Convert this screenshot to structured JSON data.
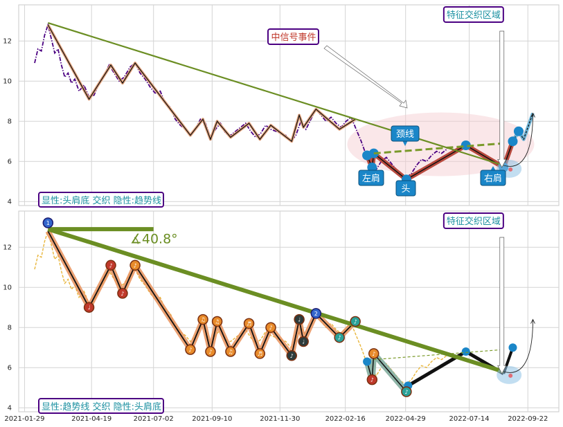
{
  "chart_data": [
    {
      "type": "line",
      "panel": "top",
      "title": "",
      "xlabel": "",
      "ylabel": "",
      "ylim": [
        3.8,
        13.8
      ],
      "y_ticks": [
        "4",
        "6",
        "8",
        "10",
        "12"
      ],
      "grid": true,
      "price_series": {
        "name": "",
        "color": "#4b0082",
        "style": "dashdot",
        "points": [
          [
            "2021-02-10",
            10.9
          ],
          [
            "2021-02-14",
            11.6
          ],
          [
            "2021-02-18",
            11.5
          ],
          [
            "2021-02-22",
            12.3
          ],
          [
            "2021-02-26",
            12.8
          ],
          [
            "2021-03-02",
            12.1
          ],
          [
            "2021-03-06",
            11.4
          ],
          [
            "2021-03-10",
            11.6
          ],
          [
            "2021-03-14",
            10.8
          ],
          [
            "2021-03-18",
            10.2
          ],
          [
            "2021-03-22",
            10.4
          ],
          [
            "2021-03-26",
            9.9
          ],
          [
            "2021-03-30",
            10.1
          ],
          [
            "2021-04-04",
            9.5
          ],
          [
            "2021-04-10",
            9.8
          ],
          [
            "2021-04-16",
            9.2
          ],
          [
            "2021-04-22",
            9.3
          ],
          [
            "2021-04-28",
            9.9
          ],
          [
            "2021-05-04",
            10.3
          ],
          [
            "2021-05-10",
            10.8
          ],
          [
            "2021-05-16",
            10.4
          ],
          [
            "2021-05-22",
            10.0
          ],
          [
            "2021-05-28",
            10.2
          ],
          [
            "2021-06-04",
            10.7
          ],
          [
            "2021-06-10",
            10.9
          ],
          [
            "2021-06-16",
            10.4
          ],
          [
            "2021-06-22",
            10.1
          ],
          [
            "2021-06-28",
            9.7
          ],
          [
            "2021-07-04",
            9.4
          ],
          [
            "2021-07-10",
            9.5
          ],
          [
            "2021-07-16",
            8.9
          ],
          [
            "2021-07-22",
            8.7
          ],
          [
            "2021-07-28",
            8.1
          ],
          [
            "2021-08-03",
            7.8
          ],
          [
            "2021-08-09",
            7.6
          ],
          [
            "2021-08-15",
            7.3
          ],
          [
            "2021-08-21",
            7.6
          ],
          [
            "2021-08-27",
            8.1
          ],
          [
            "2021-09-02",
            7.9
          ],
          [
            "2021-09-08",
            7.2
          ],
          [
            "2021-09-14",
            7.6
          ],
          [
            "2021-09-20",
            7.9
          ],
          [
            "2021-09-26",
            7.4
          ],
          [
            "2021-10-02",
            7.3
          ],
          [
            "2021-10-08",
            7.5
          ],
          [
            "2021-10-14",
            7.7
          ],
          [
            "2021-10-20",
            7.9
          ],
          [
            "2021-10-26",
            7.5
          ],
          [
            "2021-11-01",
            7.2
          ],
          [
            "2021-11-07",
            7.4
          ],
          [
            "2021-11-13",
            7.8
          ],
          [
            "2021-11-19",
            7.6
          ],
          [
            "2021-11-25",
            7.5
          ],
          [
            "2021-12-01",
            7.4
          ],
          [
            "2021-12-07",
            7.3
          ],
          [
            "2021-12-13",
            7.0
          ],
          [
            "2021-12-19",
            7.3
          ],
          [
            "2021-12-25",
            8.0
          ],
          [
            "2021-12-31",
            7.6
          ],
          [
            "2022-01-06",
            8.1
          ],
          [
            "2022-01-12",
            8.6
          ],
          [
            "2022-01-18",
            8.3
          ],
          [
            "2022-01-24",
            8.0
          ],
          [
            "2022-01-30",
            8.2
          ],
          [
            "2022-02-05",
            7.9
          ],
          [
            "2022-02-11",
            7.7
          ],
          [
            "2022-02-17",
            8.0
          ],
          [
            "2022-02-23",
            8.2
          ],
          [
            "2022-03-01",
            7.6
          ],
          [
            "2022-03-07",
            7.0
          ],
          [
            "2022-03-13",
            6.3
          ],
          [
            "2022-03-19",
            6.0
          ],
          [
            "2022-03-25",
            5.6
          ],
          [
            "2022-03-31",
            6.0
          ],
          [
            "2022-04-06",
            6.2
          ],
          [
            "2022-04-12",
            5.9
          ],
          [
            "2022-04-18",
            5.6
          ],
          [
            "2022-04-24",
            5.3
          ],
          [
            "2022-04-30",
            5.2
          ],
          [
            "2022-05-06",
            5.4
          ],
          [
            "2022-05-12",
            5.8
          ],
          [
            "2022-05-18",
            6.1
          ],
          [
            "2022-05-24",
            6.0
          ],
          [
            "2022-05-30",
            6.3
          ],
          [
            "2022-06-05",
            6.5
          ],
          [
            "2022-06-11",
            6.4
          ],
          [
            "2022-06-17",
            6.6
          ]
        ]
      },
      "zigzag": {
        "points": [
          [
            "2021-02-26",
            12.8
          ],
          [
            "2021-04-16",
            9.1
          ],
          [
            "2021-05-12",
            10.8
          ],
          [
            "2021-05-26",
            9.9
          ],
          [
            "2021-06-10",
            10.9
          ],
          [
            "2021-08-15",
            7.3
          ],
          [
            "2021-08-30",
            8.1
          ],
          [
            "2021-09-08",
            7.1
          ],
          [
            "2021-09-16",
            8.0
          ],
          [
            "2021-10-02",
            7.2
          ],
          [
            "2021-10-24",
            7.9
          ],
          [
            "2021-11-06",
            7.1
          ],
          [
            "2021-11-19",
            7.8
          ],
          [
            "2021-12-14",
            7.0
          ],
          [
            "2021-12-23",
            8.3
          ],
          [
            "2021-12-28",
            7.7
          ],
          [
            "2022-01-12",
            8.6
          ],
          [
            "2022-02-09",
            7.6
          ],
          [
            "2022-02-28",
            8.1
          ]
        ]
      },
      "pattern": {
        "points": [
          [
            "2022-03-14",
            6.3
          ],
          [
            "2022-03-20",
            5.7
          ],
          [
            "2022-03-22",
            6.4
          ],
          [
            "2022-04-30",
            5.1
          ],
          [
            "2022-07-10",
            6.8
          ],
          [
            "2022-08-24",
            5.7
          ],
          [
            "2022-09-04",
            7.0
          ],
          [
            "2022-09-11",
            7.5
          ],
          [
            "2022-09-17",
            7.1
          ],
          [
            "2022-09-28",
            8.4
          ]
        ]
      },
      "trendline": [
        [
          "2021-02-26",
          12.9
        ],
        [
          "2022-08-24",
          5.8
        ]
      ],
      "neckline": [
        [
          "2022-03-22",
          6.4
        ],
        [
          "2022-08-24",
          6.9
        ]
      ],
      "annotations": {
        "left_shoulder": "左肩",
        "head": "头",
        "right_shoulder": "右肩",
        "neckline": "颈线",
        "mid_signal": "中信号事件",
        "feature_zone": "特征交织区域",
        "panel_label": "显性:头肩底 交织 隐性:趋势线"
      }
    },
    {
      "type": "line",
      "panel": "bottom",
      "title": "",
      "xlabel": "",
      "ylabel": "",
      "ylim": [
        3.8,
        13.8
      ],
      "y_ticks": [
        "4",
        "6",
        "8",
        "10",
        "12"
      ],
      "grid": true,
      "angle_label": "∡40.8°",
      "price_series": {
        "name": "",
        "color": "#e8b53a",
        "style": "dashed",
        "points": [
          [
            "2021-02-10",
            10.9
          ],
          [
            "2021-02-14",
            11.6
          ],
          [
            "2021-02-18",
            11.5
          ],
          [
            "2021-02-22",
            12.3
          ],
          [
            "2021-02-26",
            12.8
          ],
          [
            "2021-03-02",
            12.1
          ],
          [
            "2021-03-06",
            11.4
          ],
          [
            "2021-03-10",
            11.6
          ],
          [
            "2021-03-14",
            10.8
          ],
          [
            "2021-03-18",
            10.2
          ],
          [
            "2021-03-22",
            10.4
          ],
          [
            "2021-03-26",
            9.9
          ],
          [
            "2021-03-30",
            10.1
          ],
          [
            "2021-04-04",
            9.5
          ],
          [
            "2021-04-10",
            9.8
          ],
          [
            "2021-04-16",
            9.2
          ],
          [
            "2021-04-22",
            9.3
          ],
          [
            "2021-04-28",
            9.9
          ],
          [
            "2021-05-04",
            10.3
          ],
          [
            "2021-05-10",
            10.8
          ],
          [
            "2021-05-16",
            10.4
          ],
          [
            "2021-05-22",
            10.0
          ],
          [
            "2021-05-28",
            10.2
          ],
          [
            "2021-06-04",
            10.7
          ],
          [
            "2021-06-10",
            10.9
          ],
          [
            "2021-06-16",
            10.4
          ],
          [
            "2021-06-22",
            10.1
          ],
          [
            "2021-06-28",
            9.7
          ],
          [
            "2021-07-04",
            9.4
          ],
          [
            "2021-07-10",
            9.5
          ],
          [
            "2021-07-16",
            8.9
          ],
          [
            "2021-07-22",
            8.7
          ],
          [
            "2021-07-28",
            8.1
          ],
          [
            "2021-08-03",
            7.8
          ],
          [
            "2021-08-09",
            7.6
          ],
          [
            "2021-08-15",
            7.3
          ],
          [
            "2021-08-21",
            7.6
          ],
          [
            "2021-08-27",
            8.1
          ],
          [
            "2021-09-02",
            7.9
          ],
          [
            "2021-09-08",
            7.2
          ],
          [
            "2021-09-14",
            7.6
          ],
          [
            "2021-09-20",
            7.9
          ],
          [
            "2021-09-26",
            7.4
          ],
          [
            "2021-10-02",
            7.3
          ],
          [
            "2021-10-08",
            7.5
          ],
          [
            "2021-10-14",
            7.7
          ],
          [
            "2021-10-20",
            7.9
          ],
          [
            "2021-10-26",
            7.5
          ],
          [
            "2021-11-01",
            7.2
          ],
          [
            "2021-11-07",
            7.4
          ],
          [
            "2021-11-13",
            7.8
          ],
          [
            "2021-11-19",
            7.6
          ],
          [
            "2021-11-25",
            7.5
          ],
          [
            "2021-12-01",
            7.4
          ],
          [
            "2021-12-07",
            7.3
          ],
          [
            "2021-12-13",
            7.0
          ],
          [
            "2021-12-19",
            7.3
          ],
          [
            "2021-12-25",
            8.0
          ],
          [
            "2021-12-31",
            7.6
          ],
          [
            "2022-01-06",
            8.1
          ],
          [
            "2022-01-12",
            8.6
          ],
          [
            "2022-01-18",
            8.3
          ],
          [
            "2022-01-24",
            8.0
          ],
          [
            "2022-01-30",
            8.2
          ],
          [
            "2022-02-05",
            7.9
          ],
          [
            "2022-02-11",
            7.7
          ],
          [
            "2022-02-17",
            8.0
          ],
          [
            "2022-02-23",
            8.2
          ],
          [
            "2022-03-01",
            7.6
          ],
          [
            "2022-03-07",
            7.0
          ],
          [
            "2022-03-13",
            6.3
          ],
          [
            "2022-03-19",
            6.0
          ],
          [
            "2022-03-25",
            5.6
          ],
          [
            "2022-03-31",
            6.0
          ],
          [
            "2022-04-06",
            6.2
          ],
          [
            "2022-04-12",
            5.9
          ],
          [
            "2022-04-18",
            5.6
          ],
          [
            "2022-04-24",
            5.3
          ],
          [
            "2022-04-30",
            5.2
          ],
          [
            "2022-05-06",
            5.4
          ],
          [
            "2022-05-12",
            5.8
          ],
          [
            "2022-05-18",
            6.1
          ],
          [
            "2022-05-24",
            6.0
          ],
          [
            "2022-05-30",
            6.3
          ],
          [
            "2022-06-05",
            6.5
          ],
          [
            "2022-06-11",
            6.4
          ],
          [
            "2022-06-17",
            6.6
          ]
        ]
      },
      "zigzag": {
        "points": [
          [
            "2021-02-26",
            12.8
          ],
          [
            "2021-04-16",
            9.0
          ],
          [
            "2021-05-12",
            11.1
          ],
          [
            "2021-05-26",
            9.7
          ],
          [
            "2021-06-10",
            11.1
          ],
          [
            "2021-08-15",
            6.9
          ],
          [
            "2021-08-30",
            8.4
          ],
          [
            "2021-09-08",
            6.8
          ],
          [
            "2021-09-16",
            8.3
          ],
          [
            "2021-10-02",
            6.8
          ],
          [
            "2021-10-24",
            8.2
          ],
          [
            "2021-11-06",
            6.7
          ],
          [
            "2021-11-19",
            8.0
          ],
          [
            "2021-12-14",
            6.6
          ],
          [
            "2021-12-23",
            8.4
          ],
          [
            "2021-12-28",
            7.3
          ],
          [
            "2022-01-12",
            8.7
          ],
          [
            "2022-02-09",
            7.5
          ],
          [
            "2022-02-28",
            8.3
          ]
        ],
        "marker_glyphs": [
          "1",
          "♩",
          "♪",
          "♪",
          "♪",
          "♪",
          "♫",
          "♪",
          "♫",
          "♫",
          "♬",
          "♬",
          "♪",
          "♪",
          "♩",
          "♩",
          "2",
          "♪",
          "♪"
        ]
      },
      "pattern": {
        "points": [
          [
            "2022-03-14",
            6.3
          ],
          [
            "2022-03-20",
            5.4
          ],
          [
            "2022-03-22",
            6.7
          ],
          [
            "2022-04-30",
            4.8
          ],
          [
            "2022-05-02",
            5.1
          ],
          [
            "2022-07-10",
            6.8
          ],
          [
            "2022-08-24",
            5.7
          ],
          [
            "2022-09-04",
            7.0
          ]
        ]
      },
      "trendline": [
        [
          "2021-02-26",
          12.9
        ],
        [
          "2022-08-24",
          5.8
        ]
      ],
      "flat_line": [
        [
          "2021-02-26",
          12.9
        ],
        [
          "2021-07-02",
          12.9
        ]
      ],
      "neckline": [
        [
          "2022-03-22",
          6.4
        ],
        [
          "2022-08-24",
          6.9
        ]
      ],
      "annotations": {
        "feature_zone": "特征交织区域",
        "panel_label": "显性:趋势线 交织 隐性:头肩底"
      }
    }
  ],
  "x_axis": {
    "ticks": [
      [
        "2021-01-29",
        "2021-01-29"
      ],
      [
        "2021-04-19",
        "2021-04-19"
      ],
      [
        "2021-07-02",
        "2021-07-02"
      ],
      [
        "2021-09-10",
        "2021-09-10"
      ],
      [
        "2021-11-30",
        "2021-11-30"
      ],
      [
        "2022-02-16",
        "2022-02-16"
      ],
      [
        "2022-04-29",
        "2022-04-29"
      ],
      [
        "2022-07-14",
        "2022-07-14"
      ],
      [
        "2022-09-22",
        "2022-09-22"
      ]
    ],
    "range": [
      "2021-01-22",
      "2022-10-29"
    ]
  },
  "colors": {
    "grid": "#d4d4d4",
    "frame": "#c8c8c8",
    "trend_green": "#6b8e23",
    "zig_orange": "#e7905a",
    "zig_dark": "#111111",
    "pattern_red": "#b84a3e",
    "pattern_blue": "#1a86c8",
    "pattern_teal": "#8fb5a8",
    "label_box_border": "#4b0082",
    "label_text_teal": "#1a8fa0",
    "label_text_red": "#c0392b",
    "ellipse_pink": "#f4c9cf"
  }
}
